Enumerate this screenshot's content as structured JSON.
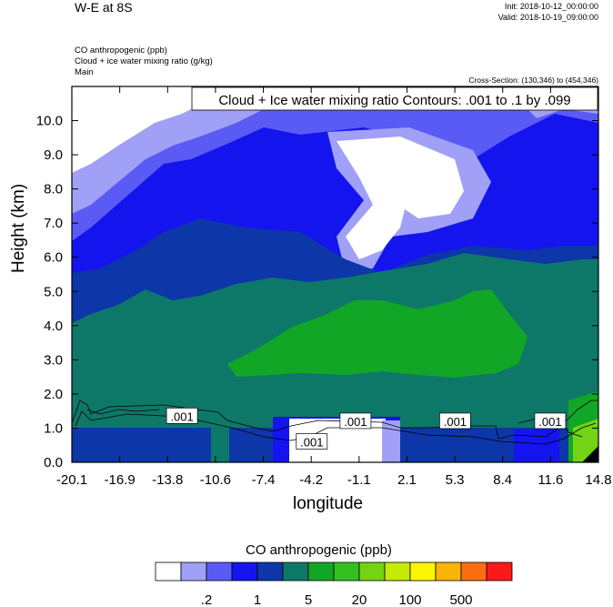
{
  "header": {
    "title": "W-E at 8S",
    "init": "Init: 2018-10-12_00:00:00",
    "valid": "Valid: 2018-10-19_09:00:00",
    "fields": [
      "CO anthropogenic   (ppb)",
      "Cloud + ice water mixing ratio   (g/kg)",
      "Main"
    ],
    "cross_section": "Cross-Section: (130,346) to (454,346)"
  },
  "chart_data": {
    "type": "heatmap",
    "title": "",
    "xlabel": "longitude",
    "ylabel": "Height (km)",
    "xlim": [
      -20.1,
      14.8
    ],
    "ylim": [
      0.0,
      11.0
    ],
    "x_ticks": [
      "-20.1",
      "-16.9",
      "-13.8",
      "-10.6",
      "-7.4",
      "-4.2",
      "-1.1",
      "2.1",
      "5.3",
      "8.4",
      "11.6",
      "14.8"
    ],
    "y_ticks": [
      "0.0",
      "1.0",
      "2.0",
      "3.0",
      "4.0",
      "5.0",
      "6.0",
      "7.0",
      "8.0",
      "9.0",
      "10.0"
    ],
    "contour_annotation": "Cloud + Ice water mixing ratio Contours: .001 to .1 by .099",
    "contour_labels": [
      {
        "text": ".001",
        "lon": -12.8,
        "height": 1.35
      },
      {
        "text": ".001",
        "lon": -1.3,
        "height": 1.2
      },
      {
        "text": ".001",
        "lon": -4.2,
        "height": 0.6
      },
      {
        "text": ".001",
        "lon": 5.3,
        "height": 1.2
      },
      {
        "text": ".001",
        "lon": 11.6,
        "height": 1.2
      }
    ],
    "colorbar": {
      "title": "CO anthropogenic  (ppb)",
      "colors": [
        "#ffffff",
        "#a0a0f7",
        "#5a5af5",
        "#1414ee",
        "#0d36a8",
        "#0e7868",
        "#12a626",
        "#33c01e",
        "#73d314",
        "#c4ea05",
        "#fbf500",
        "#fbb308",
        "#fb6e14",
        "#fb1a1a"
      ],
      "tick_labels": [
        ".2",
        "1",
        "5",
        "20",
        "100",
        "500"
      ]
    }
  }
}
